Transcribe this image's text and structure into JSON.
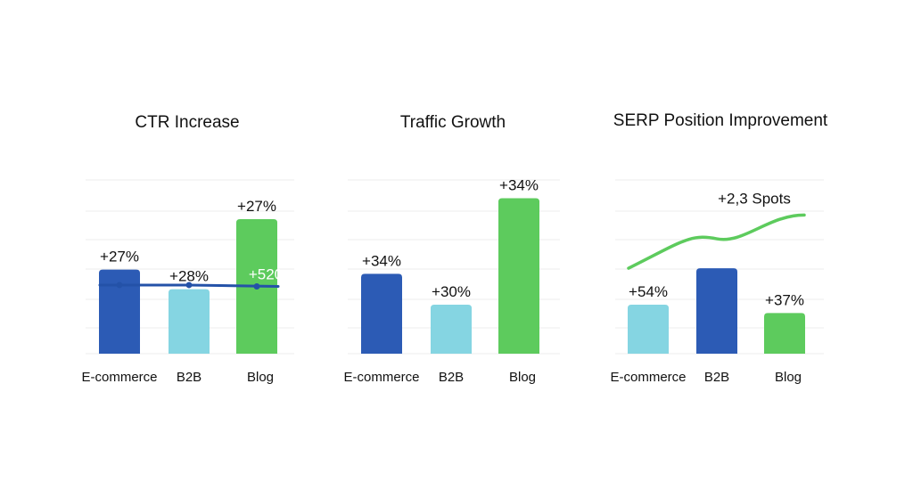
{
  "colors": {
    "dark_blue": "#2c5bb5",
    "light_blue": "#85d5e2",
    "green": "#5dcb5d",
    "line_blue": "#2452a8",
    "grid": "#ececec",
    "text": "#111111"
  },
  "chart_data": [
    {
      "type": "bar",
      "title": "CTR Increase",
      "categories": [
        "E-commerce",
        "B2B",
        "Blog"
      ],
      "values": [
        30,
        23,
        48
      ],
      "bar_colors": [
        "dark_blue",
        "light_blue",
        "green"
      ],
      "data_labels": [
        "+27%",
        "+28%",
        "+27%"
      ],
      "ylim": [
        0,
        62
      ],
      "grid": true,
      "overlay_line": {
        "type": "line",
        "values": [
          24.5,
          24.5,
          24
        ],
        "markers": true,
        "color": "line_blue"
      },
      "annotation": "+520"
    },
    {
      "type": "bar",
      "title": "Traffic Growth",
      "categories": [
        "E-commerce",
        "B2B",
        "Blog"
      ],
      "values": [
        28.5,
        17.5,
        55.5
      ],
      "bar_colors": [
        "dark_blue",
        "light_blue",
        "green"
      ],
      "data_labels": [
        "+34%",
        "+30%",
        "+34%"
      ],
      "ylim": [
        0,
        62
      ],
      "grid": true
    },
    {
      "type": "bar",
      "title": "SERP Position Improvement",
      "categories": [
        "E-commerce",
        "B2B",
        "Blog"
      ],
      "values": [
        17.5,
        30.5,
        14.5
      ],
      "bar_colors": [
        "light_blue",
        "dark_blue",
        "green"
      ],
      "data_labels": [
        "+54%",
        "",
        "+37%"
      ],
      "ylim": [
        0,
        62
      ],
      "grid": true,
      "overlay_line": {
        "type": "line",
        "values": [
          30.5,
          41,
          49.5
        ],
        "markers": false,
        "color": "green"
      },
      "annotation": "+2,3 Spots"
    }
  ]
}
